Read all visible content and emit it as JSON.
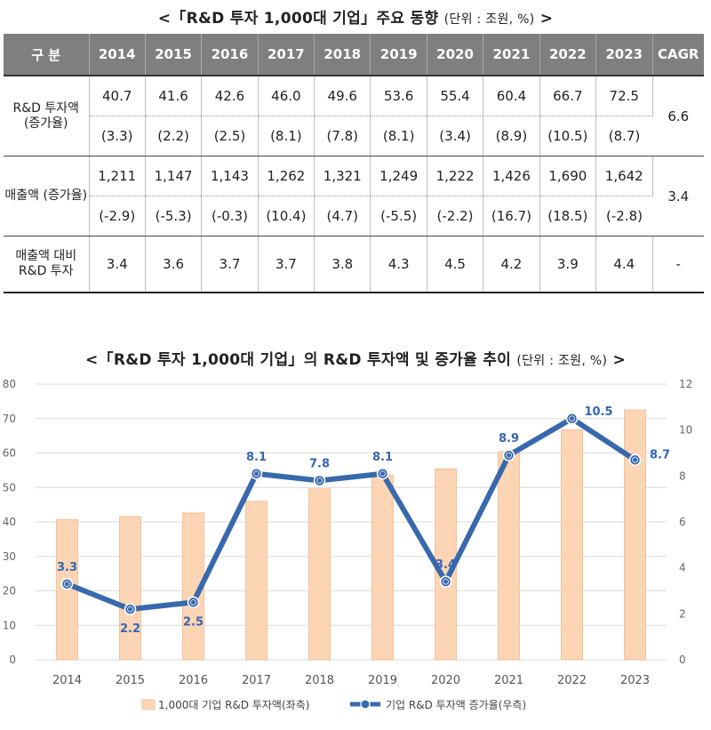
{
  "table_title": "<「R&D 투자 1,000대 기업」주요 동향",
  "table_title_unit": "(단위 : 조원, %)",
  "table_title_end": ">",
  "table": {
    "header_label": "구 분",
    "years": [
      "2014",
      "2015",
      "2016",
      "2017",
      "2018",
      "2019",
      "2020",
      "2021",
      "2022",
      "2023"
    ],
    "cagr_label": "CAGR",
    "rows": [
      {
        "label": "R&D 투자액 (증가율)",
        "values": [
          "40.7",
          "41.6",
          "42.6",
          "46.0",
          "49.6",
          "53.6",
          "55.4",
          "60.4",
          "66.7",
          "72.5"
        ],
        "rates": [
          "(3.3)",
          "(2.2)",
          "(2.5)",
          "(8.1)",
          "(7.8)",
          "(8.1)",
          "(3.4)",
          "(8.9)",
          "(10.5)",
          "(8.7)"
        ],
        "cagr": "6.6"
      },
      {
        "label": "매출액 (증가율)",
        "values": [
          "1,211",
          "1,147",
          "1,143",
          "1,262",
          "1,321",
          "1,249",
          "1,222",
          "1,426",
          "1,690",
          "1,642"
        ],
        "rates": [
          "(-2.9)",
          "(-5.3)",
          "(-0.3)",
          "(10.4)",
          "(4.7)",
          "(-5.5)",
          "(-2.2)",
          "(16.7)",
          "(18.5)",
          "(-2.8)"
        ],
        "cagr": "3.4"
      },
      {
        "label": "매출액 대비 R&D 투자",
        "values": [
          "3.4",
          "3.6",
          "3.7",
          "3.7",
          "3.8",
          "4.3",
          "4.5",
          "4.2",
          "3.9",
          "4.4"
        ],
        "cagr": "-"
      }
    ]
  },
  "chart_title": "<「R&D 투자 1,000대 기업」의 R&D 투자액 및 증가율 추이",
  "chart_title_unit": "(단위 : 조원, %)",
  "chart_title_end": ">",
  "chart_data": {
    "type": "bar",
    "categories": [
      "2014",
      "2015",
      "2016",
      "2017",
      "2018",
      "2019",
      "2020",
      "2021",
      "2022",
      "2023"
    ],
    "series": [
      {
        "name": "1,000대 기업 R&D 투자액(좌축)",
        "type": "bar",
        "axis": "left",
        "values": [
          40.7,
          41.6,
          42.6,
          46.0,
          49.6,
          53.6,
          55.4,
          60.4,
          66.7,
          72.5
        ],
        "color": "#fcd5b5"
      },
      {
        "name": "기업 R&D 투자액 증가율(우측)",
        "type": "line",
        "axis": "right",
        "values": [
          3.3,
          2.2,
          2.5,
          8.1,
          7.8,
          8.1,
          3.4,
          8.9,
          10.5,
          8.7
        ],
        "color": "#3869ad"
      }
    ],
    "y_left": {
      "ticks": [
        0,
        10,
        20,
        30,
        40,
        50,
        60,
        70,
        80
      ],
      "lim": [
        0,
        80
      ]
    },
    "y_right": {
      "ticks": [
        0,
        2,
        4,
        6,
        8,
        10,
        12
      ],
      "lim": [
        0,
        12
      ]
    },
    "grid": true,
    "legend_position": "bottom"
  }
}
